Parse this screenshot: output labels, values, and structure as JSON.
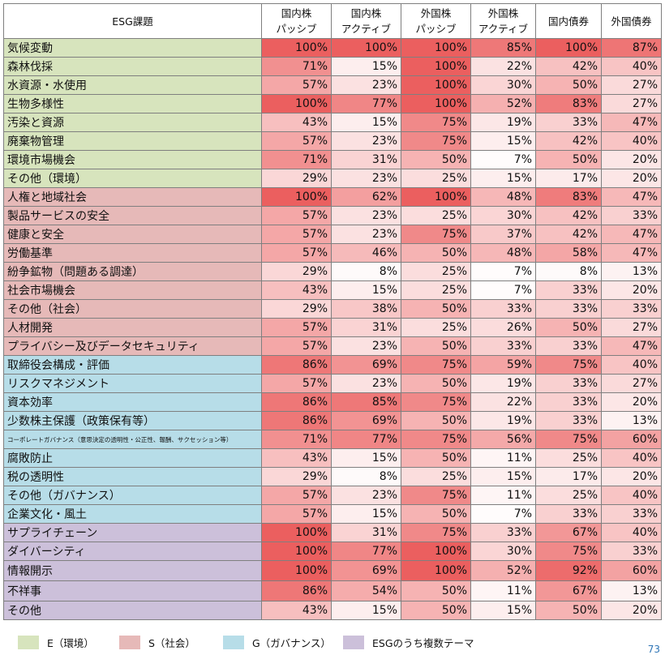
{
  "header": {
    "topic": "ESG課題",
    "columns": [
      {
        "line1": "国内株",
        "line2": "パッシブ"
      },
      {
        "line1": "国内株",
        "line2": "アクティブ"
      },
      {
        "line1": "外国株",
        "line2": "パッシブ"
      },
      {
        "line1": "外国株",
        "line2": "アクティブ"
      },
      {
        "line1": "国内債券",
        "line2": ""
      },
      {
        "line1": "外国債券",
        "line2": ""
      }
    ]
  },
  "colors": {
    "E": "#d7e4bd",
    "S": "#e6b9b8",
    "G": "#b7dde8",
    "M": "#ccc0da",
    "heat_low": "#ffffff",
    "heat_high": "#eb5f5f"
  },
  "groups": [
    {
      "category": "E",
      "rows": [
        {
          "topic": "気候変動",
          "values": [
            "100%",
            "100%",
            "100%",
            "85%",
            "100%",
            "87%"
          ]
        },
        {
          "topic": "森林伐採",
          "values": [
            "71%",
            "15%",
            "100%",
            "22%",
            "42%",
            "40%"
          ]
        },
        {
          "topic": "水資源・水使用",
          "values": [
            "57%",
            "23%",
            "100%",
            "30%",
            "50%",
            "27%"
          ]
        },
        {
          "topic": "生物多様性",
          "values": [
            "100%",
            "77%",
            "100%",
            "52%",
            "83%",
            "27%"
          ]
        },
        {
          "topic": "汚染と資源",
          "values": [
            "43%",
            "15%",
            "75%",
            "19%",
            "33%",
            "47%"
          ]
        },
        {
          "topic": "廃棄物管理",
          "values": [
            "57%",
            "23%",
            "75%",
            "15%",
            "42%",
            "40%"
          ]
        },
        {
          "topic": "環境市場機会",
          "values": [
            "71%",
            "31%",
            "50%",
            "7%",
            "50%",
            "20%"
          ]
        },
        {
          "topic": "その他（環境）",
          "values": [
            "29%",
            "23%",
            "25%",
            "15%",
            "17%",
            "20%"
          ]
        }
      ]
    },
    {
      "category": "S",
      "rows": [
        {
          "topic": "人権と地域社会",
          "values": [
            "100%",
            "62%",
            "100%",
            "48%",
            "83%",
            "47%"
          ]
        },
        {
          "topic": "製品サービスの安全",
          "values": [
            "57%",
            "23%",
            "25%",
            "30%",
            "42%",
            "33%"
          ]
        },
        {
          "topic": "健康と安全",
          "values": [
            "57%",
            "23%",
            "75%",
            "37%",
            "42%",
            "47%"
          ]
        },
        {
          "topic": "労働基準",
          "values": [
            "57%",
            "46%",
            "50%",
            "48%",
            "58%",
            "47%"
          ]
        },
        {
          "topic": "紛争鉱物（問題ある調達）",
          "values": [
            "29%",
            "8%",
            "25%",
            "7%",
            "8%",
            "13%"
          ]
        },
        {
          "topic": "社会市場機会",
          "values": [
            "43%",
            "15%",
            "25%",
            "7%",
            "33%",
            "20%"
          ]
        },
        {
          "topic": "その他（社会）",
          "values": [
            "29%",
            "38%",
            "50%",
            "33%",
            "33%",
            "33%"
          ]
        },
        {
          "topic": "人材開発",
          "values": [
            "57%",
            "31%",
            "25%",
            "26%",
            "50%",
            "27%"
          ]
        },
        {
          "topic": "プライバシー及びデータセキュリティ",
          "values": [
            "57%",
            "23%",
            "50%",
            "33%",
            "33%",
            "47%"
          ]
        }
      ]
    },
    {
      "category": "G",
      "rows": [
        {
          "topic": "取締役会構成・評価",
          "values": [
            "86%",
            "69%",
            "75%",
            "59%",
            "75%",
            "40%"
          ]
        },
        {
          "topic": "リスクマネジメント",
          "values": [
            "57%",
            "23%",
            "50%",
            "19%",
            "33%",
            "27%"
          ]
        },
        {
          "topic": "資本効率",
          "values": [
            "86%",
            "85%",
            "75%",
            "22%",
            "33%",
            "20%"
          ]
        },
        {
          "topic": "少数株主保護（政策保有等）",
          "values": [
            "86%",
            "69%",
            "50%",
            "19%",
            "33%",
            "13%"
          ]
        },
        {
          "topic": "コーポレートガバナンス（意思決定の透明性・公正性、報酬、サクセッション等）",
          "small": true,
          "values": [
            "71%",
            "77%",
            "75%",
            "56%",
            "75%",
            "60%"
          ]
        },
        {
          "topic": "腐敗防止",
          "values": [
            "43%",
            "15%",
            "50%",
            "11%",
            "25%",
            "40%"
          ]
        },
        {
          "topic": "税の透明性",
          "values": [
            "29%",
            "8%",
            "25%",
            "15%",
            "17%",
            "20%"
          ]
        },
        {
          "topic": "その他（ガバナンス）",
          "values": [
            "57%",
            "23%",
            "75%",
            "11%",
            "25%",
            "40%"
          ]
        },
        {
          "topic": "企業文化・風土",
          "values": [
            "57%",
            "15%",
            "50%",
            "7%",
            "33%",
            "33%"
          ]
        }
      ]
    },
    {
      "category": "M",
      "rows": [
        {
          "topic": "サプライチェーン",
          "values": [
            "100%",
            "31%",
            "75%",
            "33%",
            "67%",
            "40%"
          ]
        },
        {
          "topic": "ダイバーシティ",
          "values": [
            "100%",
            "77%",
            "100%",
            "30%",
            "75%",
            "33%"
          ]
        },
        {
          "topic": "情報開示",
          "tall": true,
          "values": [
            "100%",
            "69%",
            "100%",
            "52%",
            "92%",
            "60%"
          ]
        },
        {
          "topic": "不祥事",
          "tall": true,
          "values": [
            "86%",
            "54%",
            "50%",
            "11%",
            "67%",
            "13%"
          ]
        },
        {
          "topic": "その他",
          "values": [
            "43%",
            "15%",
            "50%",
            "15%",
            "50%",
            "20%"
          ]
        }
      ]
    }
  ],
  "legend": [
    {
      "category": "E",
      "label": "E（環境）"
    },
    {
      "category": "S",
      "label": "S（社会）"
    },
    {
      "category": "G",
      "label": "G（ガバナンス）"
    },
    {
      "category": "M",
      "label": "ESGのうち複数テーマ"
    }
  ],
  "page_number": "73"
}
